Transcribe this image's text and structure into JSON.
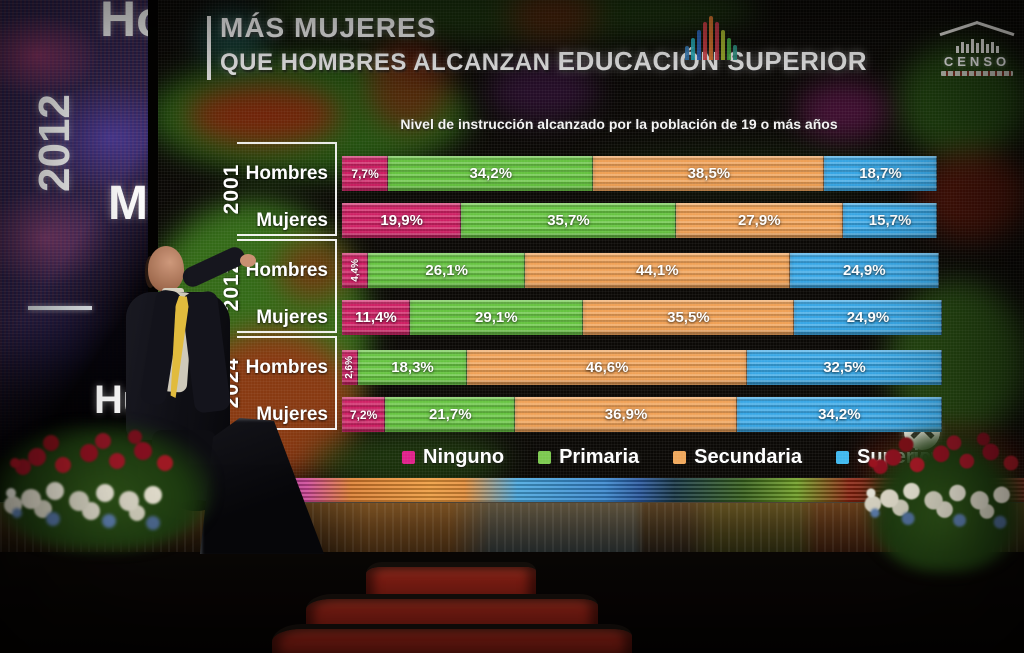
{
  "scene": {
    "side_screen": {
      "top_text": "Ho",
      "year_text": "2012",
      "mid_text": "M",
      "lower_text": "Hu"
    },
    "censo_logo_text": "CENSO"
  },
  "screen": {
    "title_line1": "MÁS MUJERES",
    "title_line2a": "QUE HOMBRES ALCANZAN ",
    "title_line2b": "EDUCACIÓN SUPERIOR",
    "subtitle": "Nivel de instrucción alcanzado por la población de 19 o más años"
  },
  "legend": {
    "items": [
      {
        "label": "Ninguno",
        "color": "#e0218a"
      },
      {
        "label": "Primaria",
        "color": "#7cc94f"
      },
      {
        "label": "Secundaria",
        "color": "#f0a85c"
      },
      {
        "label": "Superior",
        "color": "#41b9ef"
      }
    ]
  },
  "chart_data": {
    "type": "bar",
    "stacked": true,
    "orientation": "horizontal",
    "title": "MÁS MUJERES QUE HOMBRES ALCANZAN EDUCACIÓN SUPERIOR",
    "subtitle": "Nivel de instrucción alcanzado por la población de 19 o más años",
    "unit": "%",
    "xlim": [
      0,
      100
    ],
    "legend_position": "bottom",
    "categories": [
      "Ninguno",
      "Primaria",
      "Secundaria",
      "Superior"
    ],
    "series_colors": [
      "#cf2064",
      "#66c441",
      "#f0a156",
      "#38a7e6"
    ],
    "groups": [
      {
        "year": "2001",
        "rows": [
          {
            "label": "Hombres",
            "values": [
              7.7,
              34.2,
              38.5,
              18.7
            ],
            "display": [
              "7,7%",
              "34,2%",
              "38,5%",
              "18,7%"
            ]
          },
          {
            "label": "Mujeres",
            "values": [
              19.9,
              35.7,
              27.9,
              15.7
            ],
            "display": [
              "19,9%",
              "35,7%",
              "27,9%",
              "15,7%"
            ]
          }
        ]
      },
      {
        "year": "2012",
        "rows": [
          {
            "label": "Hombres",
            "values": [
              4.4,
              26.1,
              44.1,
              24.9
            ],
            "display": [
              "4,4%",
              "26,1%",
              "44,1%",
              "24,9%"
            ]
          },
          {
            "label": "Mujeres",
            "values": [
              11.4,
              29.1,
              35.5,
              24.9
            ],
            "display": [
              "11,4%",
              "29,1%",
              "35,5%",
              "24,9%"
            ]
          }
        ]
      },
      {
        "year": "2024",
        "rows": [
          {
            "label": "Hombres",
            "values": [
              2.6,
              18.3,
              46.6,
              32.5
            ],
            "display": [
              "2,6%",
              "18,3%",
              "46,6%",
              "32,5%"
            ]
          },
          {
            "label": "Mujeres",
            "values": [
              7.2,
              21.7,
              36.9,
              34.2
            ],
            "display": [
              "7,2%",
              "21,7%",
              "36,9%",
              "34,2%"
            ]
          }
        ]
      }
    ]
  }
}
